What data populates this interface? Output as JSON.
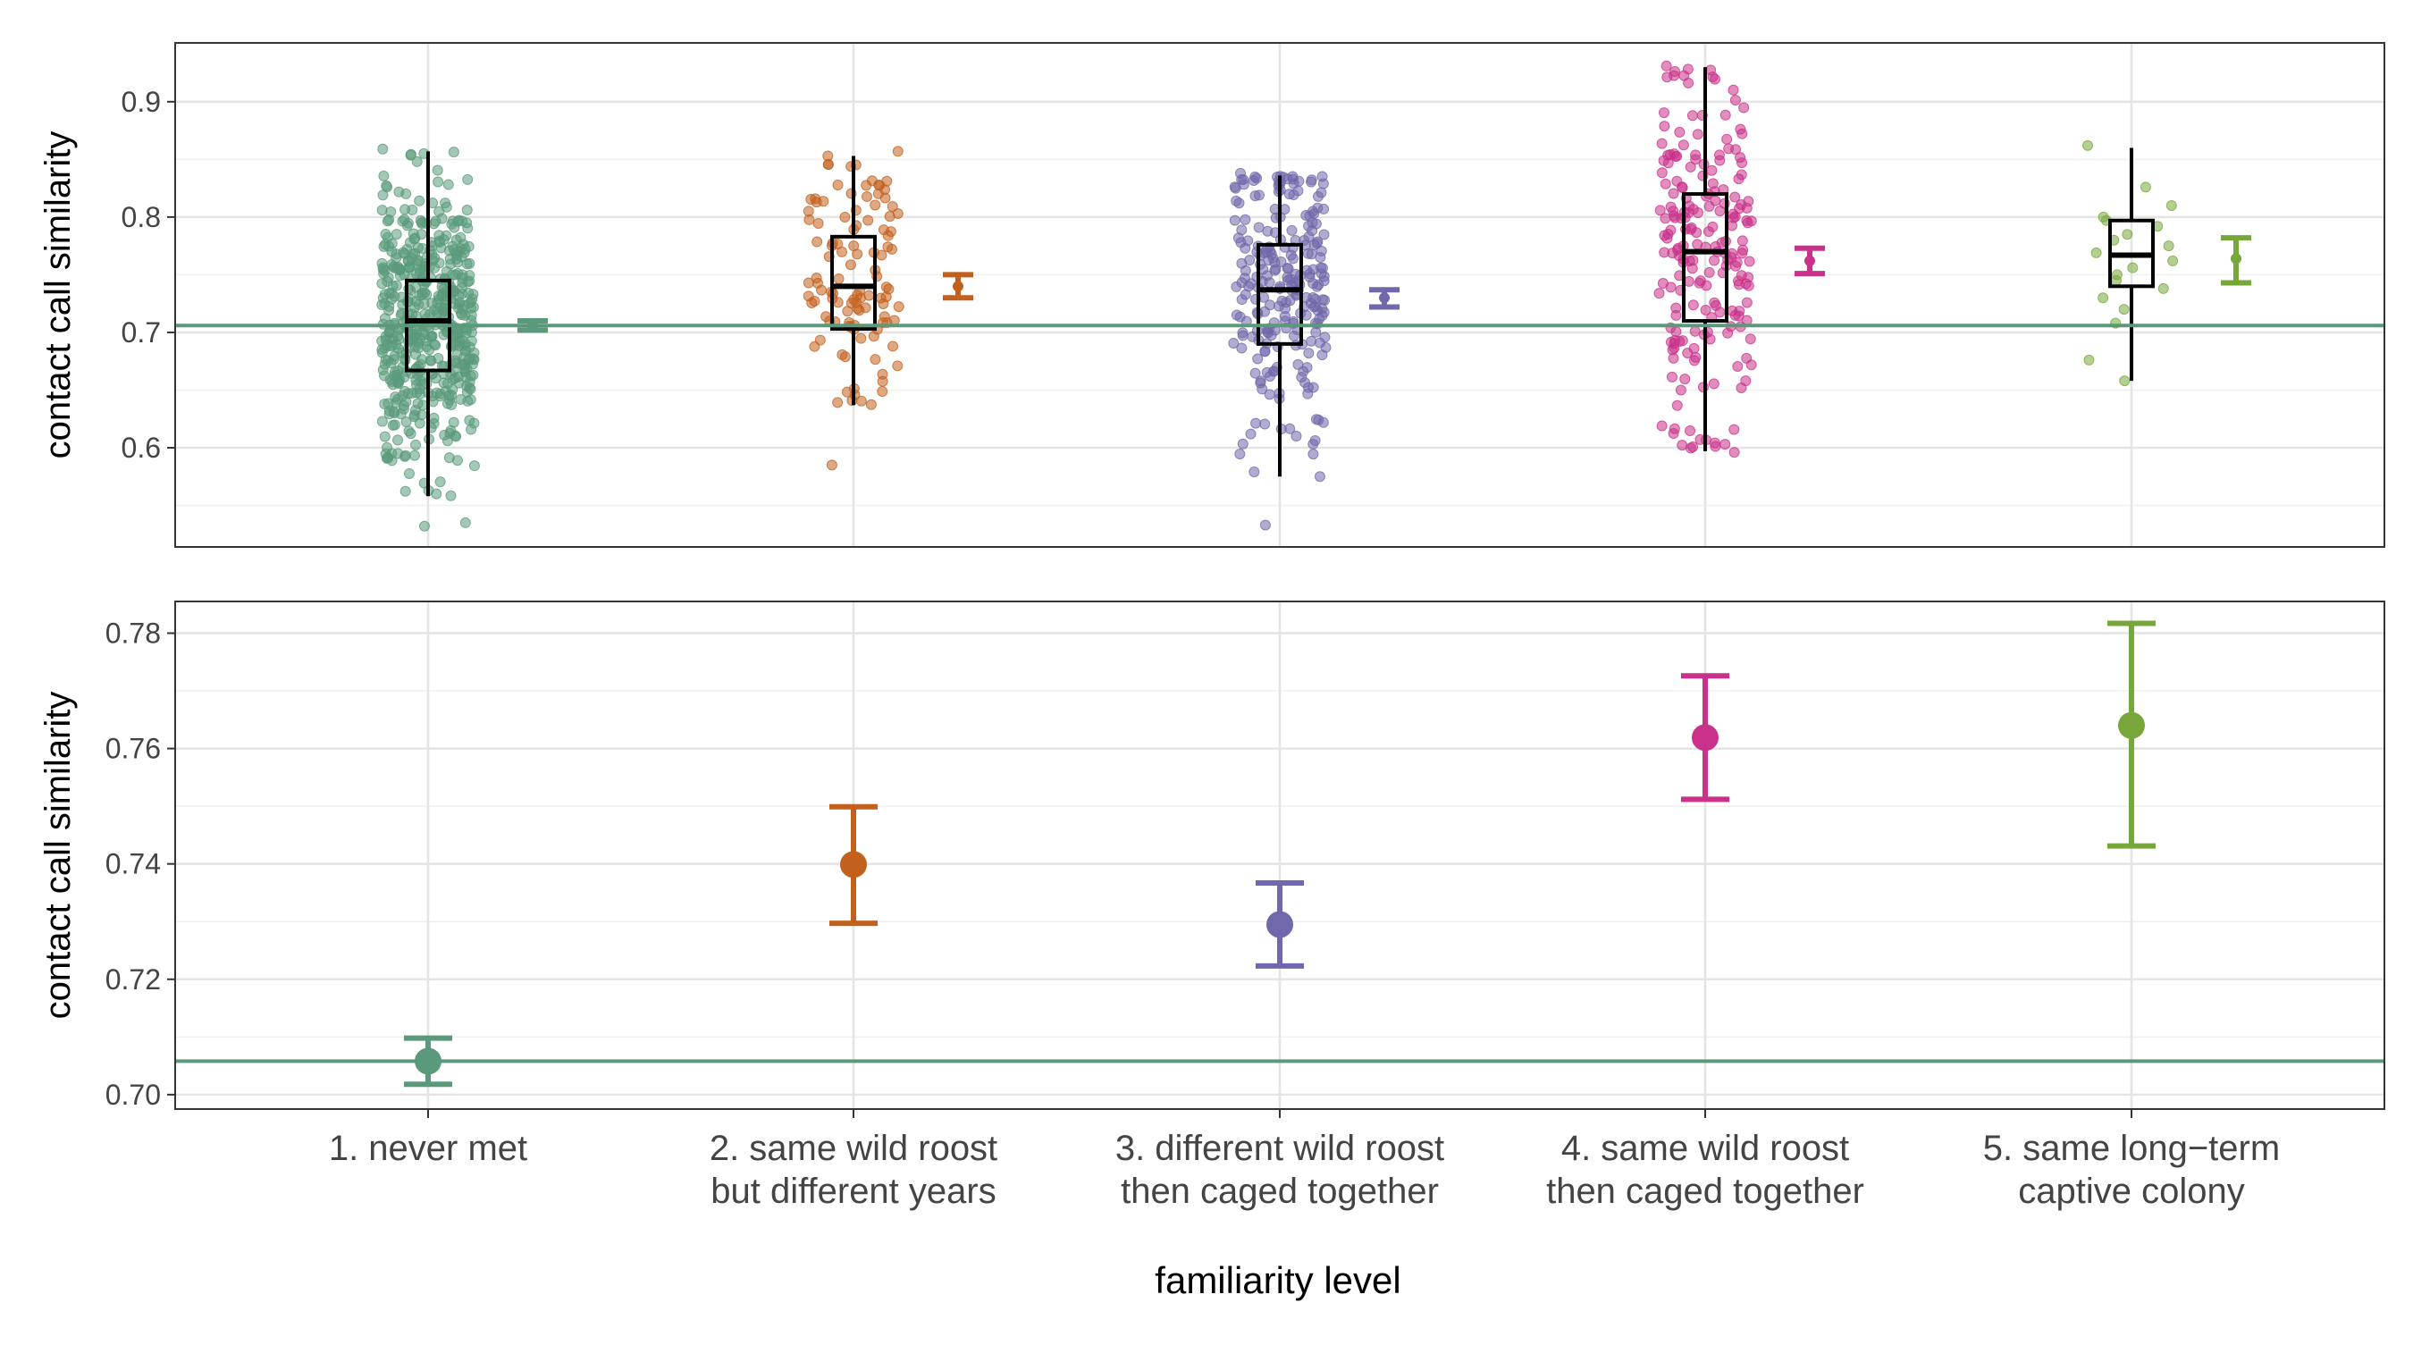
{
  "figure": {
    "xlabel": "familiarity level",
    "categories": [
      [
        "1. never met"
      ],
      [
        "2. same wild roost",
        "but different years"
      ],
      [
        "3. different wild roost",
        "then caged together"
      ],
      [
        "4. same wild roost",
        "then caged together"
      ],
      [
        "5. same long−term",
        "captive colony"
      ]
    ],
    "colors": [
      "#5a9a7a",
      "#c2601e",
      "#6f68aa",
      "#c9318a",
      "#77a73a"
    ],
    "reference_line_color": "#5a9a7a"
  },
  "chart_data": [
    {
      "type": "scatter",
      "panel": "top",
      "ylabel": "contact call similarity",
      "ylim": [
        0.514,
        0.951
      ],
      "yticks": [
        0.6,
        0.7,
        0.8,
        0.9
      ],
      "ytick_labels": [
        "0.6",
        "0.7",
        "0.8",
        "0.9"
      ],
      "grid": true,
      "reference_line": 0.706,
      "series": [
        {
          "category": "1. never met",
          "boxplot": {
            "whisker_low": 0.558,
            "q1": 0.667,
            "median": 0.71,
            "q3": 0.745,
            "whisker_high": 0.857
          },
          "mean_ci": {
            "mean": 0.706,
            "low": 0.702,
            "high": 0.71
          },
          "jitter_points": 520,
          "extreme_points": [
            0.535,
            0.532,
            0.56,
            0.859,
            0.855
          ]
        },
        {
          "category": "2. same wild roost but different years",
          "boxplot": {
            "whisker_low": 0.637,
            "q1": 0.703,
            "median": 0.74,
            "q3": 0.783,
            "whisker_high": 0.853
          },
          "mean_ci": {
            "mean": 0.74,
            "low": 0.73,
            "high": 0.75
          },
          "jitter_points": 110,
          "extreme_points": [
            0.585,
            0.857,
            0.853
          ]
        },
        {
          "category": "3. different wild roost then caged together",
          "boxplot": {
            "whisker_low": 0.575,
            "q1": 0.69,
            "median": 0.737,
            "q3": 0.776,
            "whisker_high": 0.836
          },
          "mean_ci": {
            "mean": 0.73,
            "low": 0.722,
            "high": 0.737
          },
          "jitter_points": 240,
          "extreme_points": [
            0.533,
            0.575,
            0.838
          ]
        },
        {
          "category": "4. same wild roost then caged together",
          "boxplot": {
            "whisker_low": 0.597,
            "q1": 0.71,
            "median": 0.77,
            "q3": 0.82,
            "whisker_high": 0.93
          },
          "mean_ci": {
            "mean": 0.762,
            "low": 0.751,
            "high": 0.773
          },
          "jitter_points": 200,
          "extreme_points": [
            0.596,
            0.603,
            0.931,
            0.888
          ]
        },
        {
          "category": "5. same long−term captive colony",
          "boxplot": {
            "whisker_low": 0.658,
            "q1": 0.74,
            "median": 0.767,
            "q3": 0.797,
            "whisker_high": 0.86
          },
          "mean_ci": {
            "mean": 0.764,
            "low": 0.743,
            "high": 0.782
          },
          "points": [
            0.862,
            0.826,
            0.81,
            0.8,
            0.797,
            0.792,
            0.785,
            0.78,
            0.775,
            0.769,
            0.762,
            0.756,
            0.75,
            0.745,
            0.738,
            0.73,
            0.72,
            0.708,
            0.676,
            0.658
          ]
        }
      ]
    },
    {
      "type": "scatter",
      "panel": "bottom",
      "ylabel": "contact call similarity",
      "ylim": [
        0.6975,
        0.7855
      ],
      "yticks": [
        0.7,
        0.72,
        0.74,
        0.76,
        0.78
      ],
      "ytick_labels": [
        "0.70",
        "0.72",
        "0.74",
        "0.76",
        "0.78"
      ],
      "grid": true,
      "reference_line": 0.7058,
      "series": [
        {
          "category": "1. never met",
          "mean": 0.7058,
          "ci": [
            0.7018,
            0.7098
          ]
        },
        {
          "category": "2. same wild roost but different years",
          "mean": 0.7399,
          "ci": [
            0.7297,
            0.7499
          ]
        },
        {
          "category": "3. different wild roost then caged together",
          "mean": 0.7295,
          "ci": [
            0.7223,
            0.7367
          ]
        },
        {
          "category": "4. same wild roost then caged together",
          "mean": 0.7619,
          "ci": [
            0.7512,
            0.7726
          ]
        },
        {
          "category": "5. same long−term captive colony",
          "mean": 0.764,
          "ci": [
            0.7431,
            0.7817
          ]
        }
      ]
    }
  ]
}
